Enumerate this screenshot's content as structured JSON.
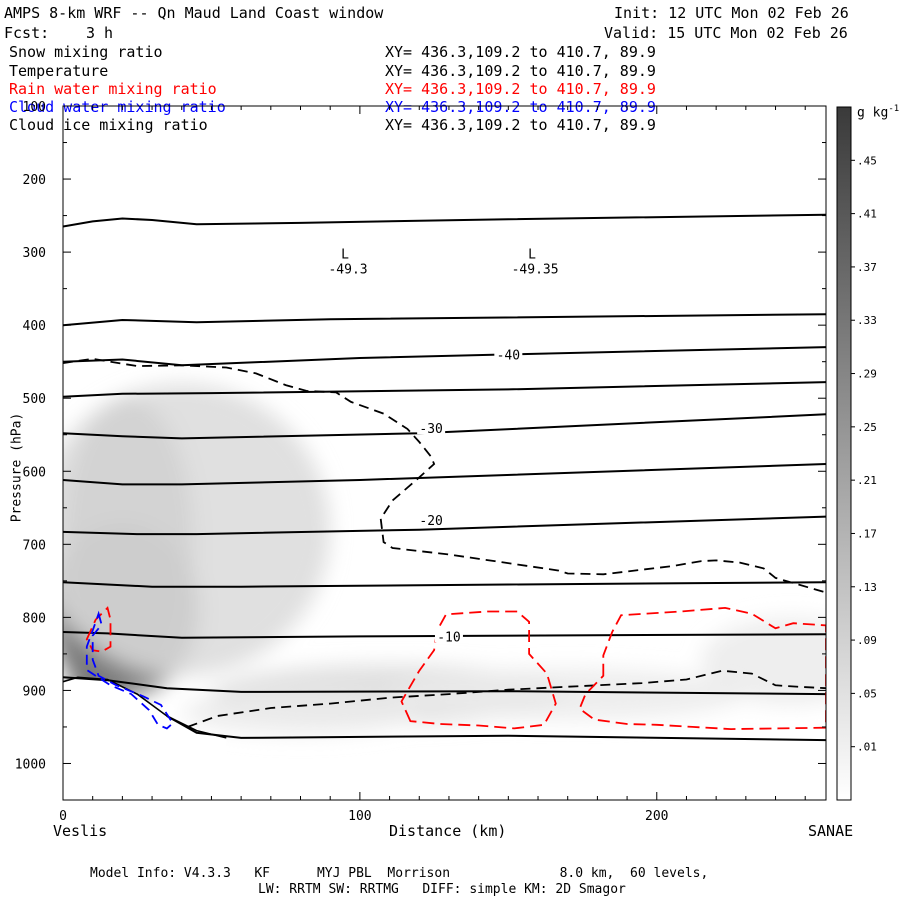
{
  "header": {
    "title": "AMPS 8-km WRF -- Qn Maud Land Coast window",
    "init": "Init: 12 UTC Mon 02 Feb 26",
    "fcst_label": "Fcst:",
    "fcst_value": "3 h",
    "valid": "Valid: 15 UTC Mon 02 Feb 26"
  },
  "fields": [
    {
      "name": "Snow mixing ratio",
      "xy": "XY= 436.3,109.2 to 410.7, 89.9",
      "color": "#000000"
    },
    {
      "name": "Temperature",
      "xy": "XY= 436.3,109.2 to 410.7, 89.9",
      "color": "#000000"
    },
    {
      "name": "Rain water mixing ratio",
      "xy": "XY= 436.3,109.2 to 410.7, 89.9",
      "color": "#ff0000"
    },
    {
      "name": "Cloud water mixing ratio",
      "xy": "XY= 436.3,109.2 to 410.7, 89.9",
      "color": "#0000ff"
    },
    {
      "name": "Cloud ice mixing ratio",
      "xy": "XY= 436.3,109.2 to 410.7, 89.9",
      "color": "#000000"
    }
  ],
  "footer": {
    "line1": "Model Info: V4.3.3   KF      MYJ PBL  Morrison              8.0 km,  60 levels,",
    "line2": "LW: RRTM SW: RRTMG   DIFF: simple KM: 2D Smagor"
  },
  "chart_data": {
    "type": "contour",
    "xlabel": "Distance (km)",
    "ylabel": "Pressure (hPa)",
    "xlim": [
      0,
      257
    ],
    "ylim": [
      1050,
      100
    ],
    "x_ticks": [
      "0",
      "100",
      "200"
    ],
    "x_end_labels": {
      "left": "Veslis",
      "right": "SANAE"
    },
    "y_ticks": [
      "100",
      "200",
      "300",
      "400",
      "500",
      "600",
      "700",
      "800",
      "900",
      "1000"
    ],
    "colorbar": {
      "unit": "g kg",
      "unit_exp": "-1",
      "labels": [
        ".45",
        ".41",
        ".37",
        ".33",
        ".29",
        ".25",
        ".21",
        ".17",
        ".13",
        ".09",
        ".05",
        ".01"
      ]
    },
    "temperature_labels": [
      "-40",
      "-30",
      "-20",
      "-10"
    ],
    "lows": [
      {
        "label": "L",
        "value": "-49.3"
      },
      {
        "label": "L",
        "value": "-49.35"
      }
    ],
    "terrain_top_hPa": [
      [
        0,
        888
      ],
      [
        5,
        882
      ],
      [
        15,
        885
      ],
      [
        25,
        905
      ],
      [
        35,
        935
      ],
      [
        45,
        955
      ],
      [
        55,
        965
      ]
    ],
    "temperature_isotherms": [
      {
        "points": [
          [
            0,
            265
          ],
          [
            10,
            258
          ],
          [
            20,
            254
          ],
          [
            30,
            256
          ],
          [
            45,
            262
          ],
          [
            80,
            260
          ],
          [
            150,
            255
          ],
          [
            257,
            249
          ]
        ]
      },
      {
        "points": [
          [
            0,
            400
          ],
          [
            20,
            393
          ],
          [
            45,
            396
          ],
          [
            90,
            392
          ],
          [
            257,
            385
          ]
        ]
      },
      {
        "label": "-40",
        "points": [
          [
            0,
            450
          ],
          [
            20,
            447
          ],
          [
            40,
            455
          ],
          [
            100,
            445
          ],
          [
            150,
            440
          ],
          [
            257,
            430
          ]
        ]
      },
      {
        "points": [
          [
            0,
            498
          ],
          [
            20,
            494
          ],
          [
            50,
            493
          ],
          [
            150,
            488
          ],
          [
            257,
            478
          ]
        ]
      },
      {
        "label": "-30",
        "points": [
          [
            0,
            548
          ],
          [
            20,
            552
          ],
          [
            40,
            555
          ],
          [
            120,
            548
          ],
          [
            257,
            522
          ]
        ]
      },
      {
        "points": [
          [
            0,
            612
          ],
          [
            20,
            618
          ],
          [
            40,
            618
          ],
          [
            100,
            612
          ],
          [
            257,
            590
          ]
        ]
      },
      {
        "label": "-20",
        "points": [
          [
            0,
            683
          ],
          [
            25,
            686
          ],
          [
            45,
            686
          ],
          [
            120,
            680
          ],
          [
            257,
            662
          ]
        ]
      },
      {
        "points": [
          [
            0,
            752
          ],
          [
            30,
            758
          ],
          [
            60,
            758
          ],
          [
            150,
            755
          ],
          [
            257,
            752
          ]
        ]
      },
      {
        "label": "-10",
        "points": [
          [
            0,
            820
          ],
          [
            15,
            822
          ],
          [
            40,
            828
          ],
          [
            100,
            826
          ],
          [
            257,
            823
          ]
        ]
      },
      {
        "points": [
          [
            0,
            882
          ],
          [
            15,
            886
          ],
          [
            35,
            897
          ],
          [
            60,
            902
          ],
          [
            150,
            901
          ],
          [
            257,
            905
          ]
        ]
      },
      {
        "points": [
          [
            35,
            935
          ],
          [
            45,
            958
          ],
          [
            60,
            965
          ],
          [
            150,
            962
          ],
          [
            257,
            968
          ]
        ]
      }
    ],
    "cloud_ice_contour": [
      [
        0,
        452
      ],
      [
        10,
        446
      ],
      [
        25,
        456
      ],
      [
        40,
        455
      ],
      [
        55,
        458
      ],
      [
        65,
        466
      ],
      [
        75,
        482
      ],
      [
        82,
        490
      ],
      [
        92,
        492
      ],
      [
        97,
        505
      ],
      [
        108,
        521
      ],
      [
        116,
        542
      ],
      [
        120,
        560
      ],
      [
        124,
        580
      ],
      [
        125,
        590
      ],
      [
        119,
        612
      ],
      [
        111,
        640
      ],
      [
        107,
        665
      ],
      [
        108,
        697
      ],
      [
        111,
        705
      ],
      [
        130,
        714
      ],
      [
        152,
        727
      ],
      [
        167,
        736
      ],
      [
        170,
        740
      ],
      [
        182,
        741
      ],
      [
        205,
        730
      ],
      [
        215,
        723
      ],
      [
        220,
        722
      ],
      [
        228,
        725
      ],
      [
        236,
        733
      ],
      [
        240,
        746
      ],
      [
        257,
        766
      ]
    ],
    "cloud_ice_contour_lower": [
      [
        42,
        950
      ],
      [
        52,
        935
      ],
      [
        70,
        924
      ],
      [
        90,
        918
      ],
      [
        110,
        910
      ],
      [
        130,
        905
      ],
      [
        150,
        899
      ],
      [
        175,
        894
      ],
      [
        195,
        890
      ],
      [
        210,
        885
      ],
      [
        222,
        873
      ],
      [
        232,
        877
      ],
      [
        240,
        893
      ],
      [
        248,
        895
      ],
      [
        257,
        897
      ]
    ],
    "rain_contours": [
      [
        [
          8,
          830
        ],
        [
          11,
          803
        ],
        [
          15,
          787
        ],
        [
          16,
          803
        ],
        [
          16,
          840
        ],
        [
          13,
          847
        ],
        [
          10,
          845
        ],
        [
          8,
          830
        ]
      ],
      [
        [
          117,
          942
        ],
        [
          114,
          915
        ],
        [
          120,
          873
        ],
        [
          125,
          845
        ],
        [
          126,
          818
        ],
        [
          129,
          796
        ],
        [
          143,
          792
        ],
        [
          153,
          792
        ],
        [
          157,
          806
        ],
        [
          157,
          850
        ],
        [
          163,
          877
        ],
        [
          166,
          918
        ],
        [
          162,
          947
        ],
        [
          152,
          952
        ],
        [
          140,
          948
        ],
        [
          127,
          946
        ],
        [
          117,
          942
        ]
      ],
      [
        [
          182,
          880
        ],
        [
          182,
          852
        ],
        [
          185,
          820
        ],
        [
          188,
          797
        ],
        [
          208,
          792
        ],
        [
          223,
          787
        ],
        [
          232,
          795
        ],
        [
          240,
          815
        ],
        [
          246,
          808
        ],
        [
          257,
          811
        ],
        [
          257,
          951
        ],
        [
          241,
          952
        ],
        [
          225,
          953
        ],
        [
          212,
          950
        ],
        [
          200,
          947
        ],
        [
          190,
          946
        ],
        [
          179,
          940
        ],
        [
          174,
          925
        ],
        [
          176,
          905
        ],
        [
          182,
          880
        ]
      ]
    ],
    "cloud_water_contour": [
      [
        12,
        795
      ],
      [
        13,
        810
      ],
      [
        10,
        825
      ],
      [
        10,
        858
      ],
      [
        12,
        880
      ],
      [
        18,
        893
      ],
      [
        27,
        908
      ],
      [
        33,
        920
      ],
      [
        37,
        945
      ],
      [
        35,
        952
      ],
      [
        32,
        947
      ],
      [
        29,
        927
      ],
      [
        23,
        905
      ],
      [
        16,
        893
      ],
      [
        8,
        872
      ],
      [
        8,
        855
      ],
      [
        8,
        840
      ],
      [
        10,
        818
      ],
      [
        12,
        795
      ]
    ],
    "snow_shading": [
      {
        "x": 12,
        "p": 840,
        "rx": 11,
        "rp": 90,
        "level": 0.45
      },
      {
        "x": 22,
        "p": 700,
        "rx": 22,
        "rp": 200,
        "level": 0.25
      },
      {
        "x": 20,
        "p": 790,
        "rx": 26,
        "rp": 120,
        "level": 0.33
      },
      {
        "x": 40,
        "p": 680,
        "rx": 50,
        "rp": 200,
        "level": 0.09
      },
      {
        "x": 110,
        "p": 905,
        "rx": 60,
        "rp": 40,
        "level": 0.09
      },
      {
        "x": 170,
        "p": 905,
        "rx": 60,
        "rp": 35,
        "level": 0.05
      },
      {
        "x": 245,
        "p": 860,
        "rx": 30,
        "rp": 60,
        "level": 0.05
      },
      {
        "x": 80,
        "p": 930,
        "rx": 40,
        "rp": 30,
        "level": 0.05
      }
    ]
  }
}
